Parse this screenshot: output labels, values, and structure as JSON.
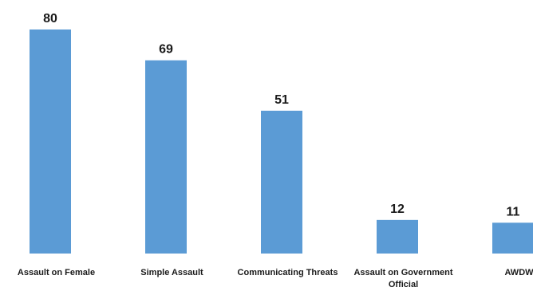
{
  "chart_data": {
    "type": "bar",
    "categories": [
      "Assault on Female",
      "Simple Assault",
      "Communicating Threats",
      "Assault on Government Official",
      "AWDW"
    ],
    "values": [
      80,
      69,
      51,
      12,
      11
    ],
    "title": "",
    "xlabel": "",
    "ylabel": "",
    "ylim": [
      0,
      80
    ],
    "grid": false,
    "legend": "none",
    "data_labels": true,
    "bar_color": "#5B9BD5",
    "text_color": "#1a1a1a"
  }
}
